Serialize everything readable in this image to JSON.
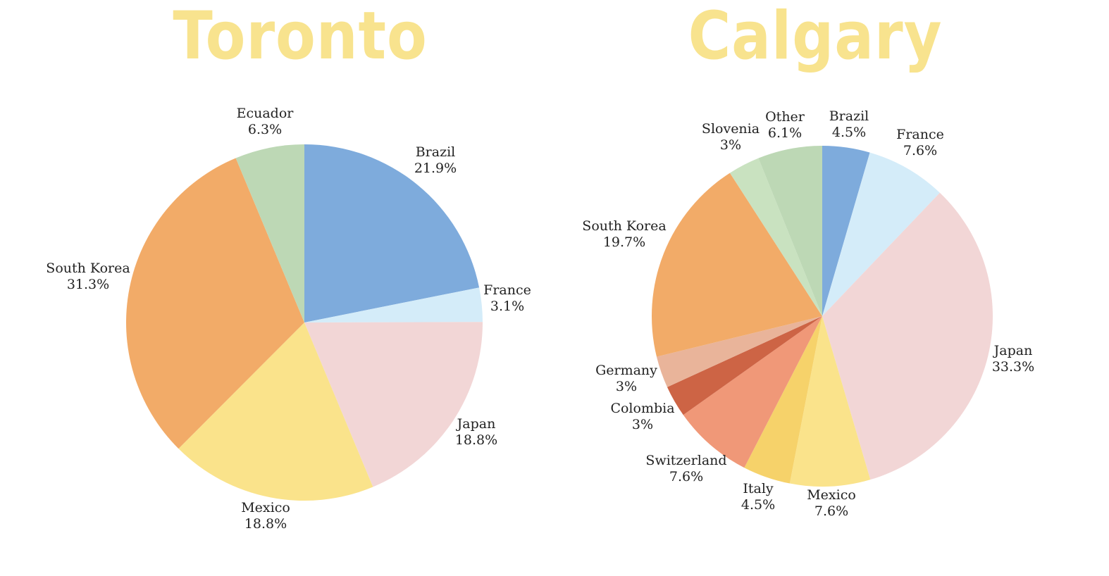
{
  "chart_data": [
    {
      "type": "pie",
      "title": "Toronto",
      "slices": [
        {
          "label": "Brazil",
          "value": 21.9,
          "display": "21.9%",
          "color": "#7eabdc"
        },
        {
          "label": "France",
          "value": 3.1,
          "display": "3.1%",
          "color": "#d4ecf9"
        },
        {
          "label": "Japan",
          "value": 18.8,
          "display": "18.8%",
          "color": "#f2d6d6"
        },
        {
          "label": "Mexico",
          "value": 18.8,
          "display": "18.8%",
          "color": "#fae38b"
        },
        {
          "label": "South Korea",
          "value": 31.3,
          "display": "31.3%",
          "color": "#f2ab68"
        },
        {
          "label": "Ecuador",
          "value": 6.3,
          "display": "6.3%",
          "color": "#bdd8b5"
        }
      ]
    },
    {
      "type": "pie",
      "title": "Calgary",
      "slices": [
        {
          "label": "Brazil",
          "value": 4.5,
          "display": "4.5%",
          "color": "#7eabdc"
        },
        {
          "label": "France",
          "value": 7.6,
          "display": "7.6%",
          "color": "#d4ecf9"
        },
        {
          "label": "Japan",
          "value": 33.3,
          "display": "33.3%",
          "color": "#f2d6d6"
        },
        {
          "label": "Mexico",
          "value": 7.6,
          "display": "7.6%",
          "color": "#fae38b"
        },
        {
          "label": "Italy",
          "value": 4.5,
          "display": "4.5%",
          "color": "#f6d26a"
        },
        {
          "label": "Switzerland",
          "value": 7.6,
          "display": "7.6%",
          "color": "#f09878"
        },
        {
          "label": "Colombia",
          "value": 3.0,
          "display": "3%",
          "color": "#cd6445"
        },
        {
          "label": "Germany",
          "value": 3.0,
          "display": "3%",
          "color": "#e9b49a"
        },
        {
          "label": "South Korea",
          "value": 19.7,
          "display": "19.7%",
          "color": "#f2ab68"
        },
        {
          "label": "Slovenia",
          "value": 3.0,
          "display": "3%",
          "color": "#c9e2c0"
        },
        {
          "label": "Other",
          "value": 6.1,
          "display": "6.1%",
          "color": "#bdd8b5"
        }
      ]
    }
  ]
}
